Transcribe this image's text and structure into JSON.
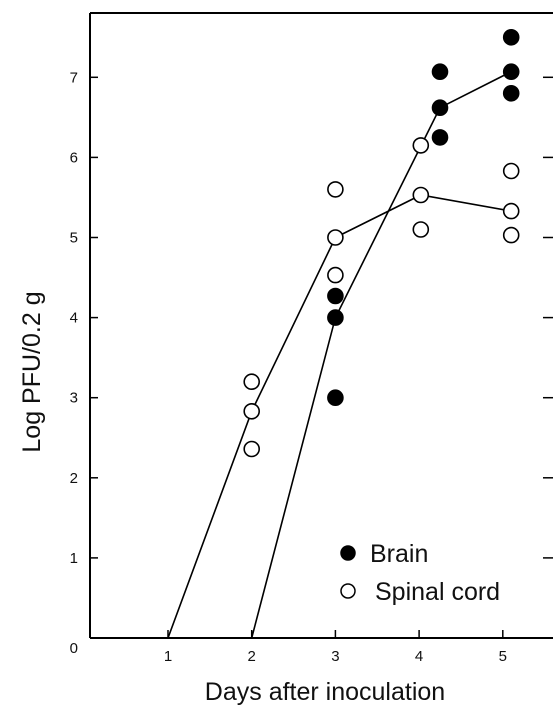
{
  "chart_data": {
    "type": "scatter",
    "xlabel": "Days after inoculation",
    "ylabel": "Log PFU/0.2 g",
    "xlim": [
      0,
      5.6
    ],
    "ylim": [
      0,
      7.7
    ],
    "x_ticks": [
      "1",
      "2",
      "3",
      "4",
      "5"
    ],
    "y_ticks": [
      "0",
      "1",
      "2",
      "3",
      "4",
      "5",
      "6",
      "7"
    ],
    "grid": false,
    "legend_position": "bottom-right",
    "series": [
      {
        "name": "Brain",
        "marker": "filled-circle",
        "color": "#000000",
        "points": [
          {
            "x": 3,
            "y": 4.27
          },
          {
            "x": 3,
            "y": 4.0
          },
          {
            "x": 3,
            "y": 3.0
          },
          {
            "x": 4.25,
            "y": 7.07
          },
          {
            "x": 4.25,
            "y": 6.62
          },
          {
            "x": 4.25,
            "y": 6.25
          },
          {
            "x": 5.1,
            "y": 7.5
          },
          {
            "x": 5.1,
            "y": 7.07
          },
          {
            "x": 5.1,
            "y": 6.8
          }
        ],
        "line": [
          {
            "x": 2,
            "y": 0
          },
          {
            "x": 3,
            "y": 4.0
          },
          {
            "x": 4.25,
            "y": 6.62
          },
          {
            "x": 5.1,
            "y": 7.07
          }
        ]
      },
      {
        "name": "Spinal cord",
        "marker": "open-circle",
        "color": "#000000",
        "points": [
          {
            "x": 2,
            "y": 3.2
          },
          {
            "x": 2,
            "y": 2.83
          },
          {
            "x": 2,
            "y": 2.36
          },
          {
            "x": 3,
            "y": 5.6
          },
          {
            "x": 3,
            "y": 5.0
          },
          {
            "x": 3,
            "y": 4.53
          },
          {
            "x": 4.02,
            "y": 6.15
          },
          {
            "x": 4.02,
            "y": 5.53
          },
          {
            "x": 4.02,
            "y": 5.1
          },
          {
            "x": 5.1,
            "y": 5.83
          },
          {
            "x": 5.1,
            "y": 5.33
          },
          {
            "x": 5.1,
            "y": 5.03
          }
        ],
        "line": [
          {
            "x": 1,
            "y": 0
          },
          {
            "x": 2,
            "y": 2.83
          },
          {
            "x": 3,
            "y": 5.0
          },
          {
            "x": 4.02,
            "y": 5.53
          },
          {
            "x": 5.1,
            "y": 5.33
          }
        ]
      }
    ]
  }
}
